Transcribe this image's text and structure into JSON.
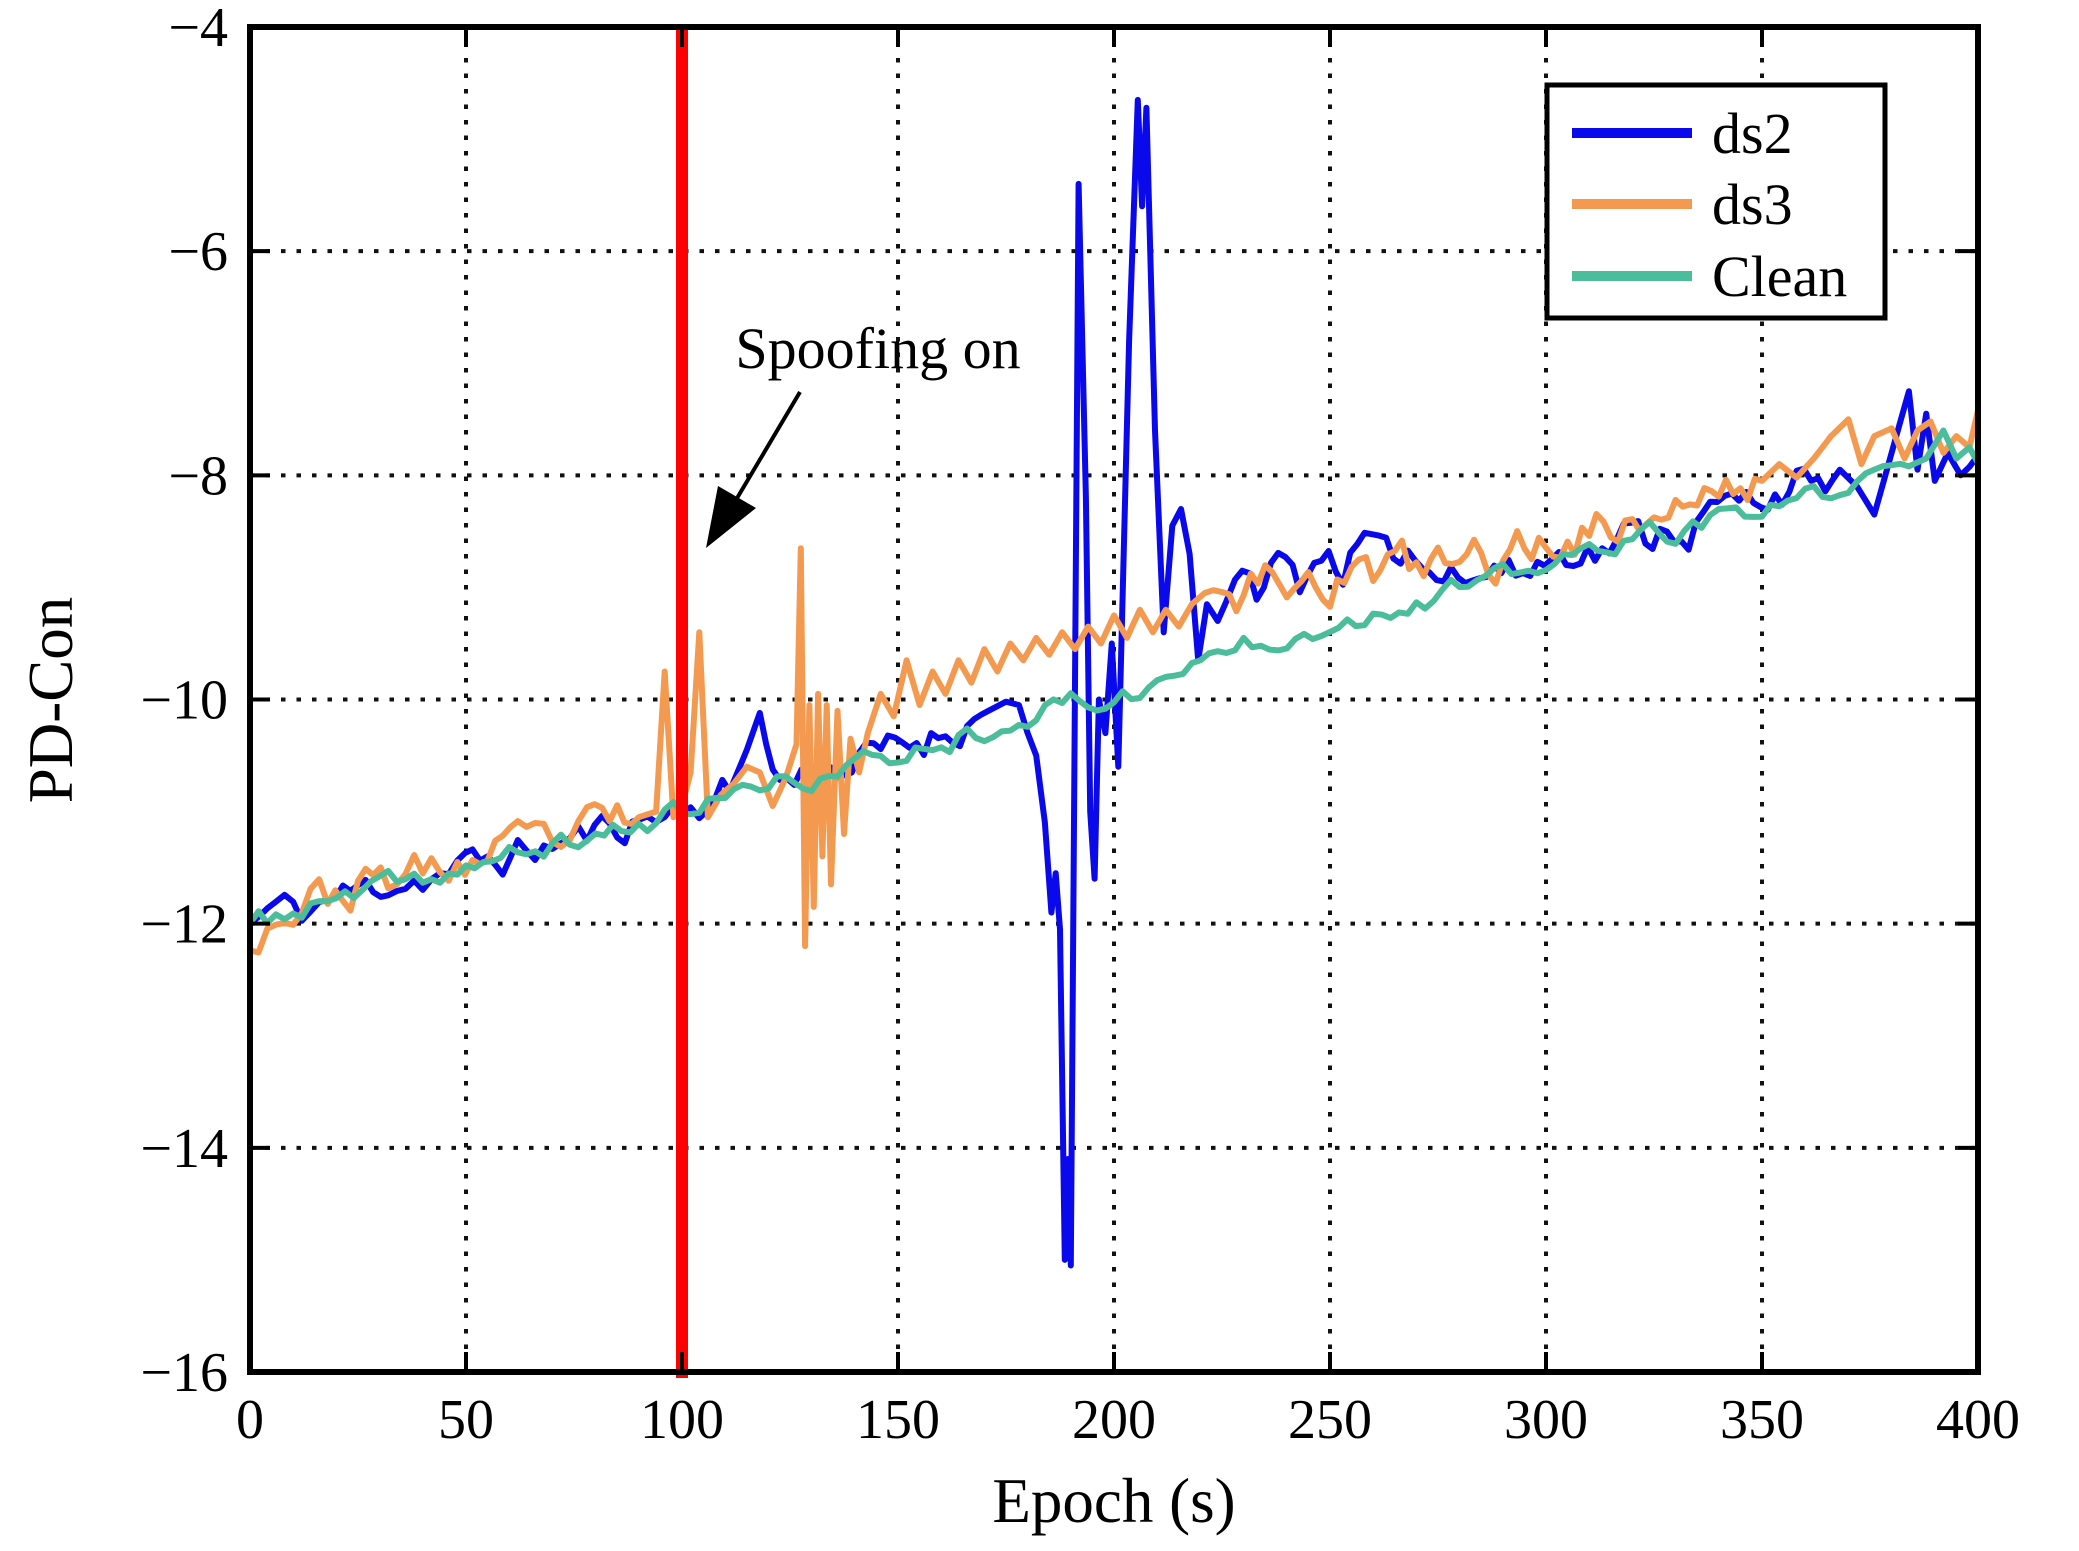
{
  "figure": {
    "title": "",
    "legend": {
      "items": [
        {
          "label": "ds2",
          "color": "#0909EC"
        },
        {
          "label": "ds3",
          "color": "#F49A50"
        },
        {
          "label": "Clean",
          "color": "#4CBD9B"
        }
      ]
    }
  },
  "chart_data": {
    "type": "line",
    "title": "",
    "xlabel": "Epoch (s)",
    "ylabel": "PD-Con",
    "xlim": [
      0,
      400
    ],
    "ylim": [
      -16,
      -4
    ],
    "xticks": [
      0,
      50,
      100,
      150,
      200,
      250,
      300,
      350,
      400
    ],
    "yticks": [
      -16,
      -14,
      -12,
      -10,
      -8,
      -6,
      -4
    ],
    "xtick_labels": [
      "0",
      "50",
      "100",
      "150",
      "200",
      "250",
      "300",
      "350",
      "400"
    ],
    "ytick_labels": [
      "−16",
      "−14",
      "−12",
      "−10",
      "−8",
      "−6",
      "−4"
    ],
    "grid": "dotted",
    "legend_position": "top-right",
    "annotation": {
      "text": "Spoofing on"
    },
    "event_line": {
      "x": 100,
      "color": "#FF0000",
      "label": "Spoofing on"
    },
    "series": [
      {
        "name": "ds2",
        "color": "#0909EC",
        "noise": 0.14,
        "seed": 11,
        "anchors": [
          [
            0,
            -12.0
          ],
          [
            6,
            -11.85
          ],
          [
            12,
            -11.9
          ],
          [
            18,
            -11.78
          ],
          [
            25,
            -11.72
          ],
          [
            32,
            -11.62
          ],
          [
            40,
            -11.58
          ],
          [
            48,
            -11.52
          ],
          [
            55,
            -11.45
          ],
          [
            62,
            -11.38
          ],
          [
            70,
            -11.3
          ],
          [
            78,
            -11.22
          ],
          [
            85,
            -11.12
          ],
          [
            92,
            -11.05
          ],
          [
            100,
            -10.98
          ],
          [
            106,
            -10.9
          ],
          [
            111,
            -10.82
          ],
          [
            115,
            -10.45
          ],
          [
            118,
            -10.12
          ],
          [
            121,
            -10.68
          ],
          [
            126,
            -10.72
          ],
          [
            131,
            -10.65
          ],
          [
            136,
            -10.6
          ],
          [
            141,
            -10.55
          ],
          [
            146,
            -10.48
          ],
          [
            151,
            -10.42
          ],
          [
            156,
            -10.35
          ],
          [
            161,
            -10.28
          ],
          [
            166,
            -10.2
          ],
          [
            171,
            -10.1
          ],
          [
            175,
            -10.02
          ],
          [
            178,
            -10.05
          ],
          [
            180,
            -10.3
          ],
          [
            182,
            -10.5
          ],
          [
            184,
            -11.1
          ],
          [
            185.5,
            -11.9
          ],
          [
            186.5,
            -11.55
          ],
          [
            187.5,
            -12.05
          ],
          [
            188.6,
            -15.0
          ],
          [
            189.3,
            -14.1
          ],
          [
            190,
            -15.05
          ],
          [
            191.8,
            -5.4
          ],
          [
            193.5,
            -8.2
          ],
          [
            194.5,
            -11.0
          ],
          [
            195.5,
            -11.6
          ],
          [
            196.5,
            -10.0
          ],
          [
            198,
            -10.3
          ],
          [
            199.5,
            -9.5
          ],
          [
            201,
            -10.6
          ],
          [
            203.5,
            -6.8
          ],
          [
            205.5,
            -4.65
          ],
          [
            206.5,
            -5.6
          ],
          [
            207.5,
            -4.72
          ],
          [
            209.5,
            -7.6
          ],
          [
            211.5,
            -9.4
          ],
          [
            213.5,
            -8.45
          ],
          [
            215.5,
            -8.3
          ],
          [
            217.5,
            -8.7
          ],
          [
            219.5,
            -9.65
          ],
          [
            221.5,
            -9.15
          ],
          [
            224,
            -9.3
          ],
          [
            228,
            -8.95
          ],
          [
            233,
            -9.05
          ],
          [
            238,
            -8.75
          ],
          [
            243,
            -8.95
          ],
          [
            248,
            -8.65
          ],
          [
            253,
            -8.8
          ],
          [
            258,
            -8.6
          ],
          [
            263,
            -8.8
          ],
          [
            268,
            -8.65
          ],
          [
            273,
            -8.85
          ],
          [
            278,
            -8.7
          ],
          [
            283,
            -8.95
          ],
          [
            288,
            -8.8
          ],
          [
            293,
            -8.9
          ],
          [
            298,
            -8.78
          ],
          [
            303,
            -8.72
          ],
          [
            308,
            -8.6
          ],
          [
            313,
            -8.68
          ],
          [
            318,
            -8.52
          ],
          [
            323,
            -8.58
          ],
          [
            328,
            -8.42
          ],
          [
            333,
            -8.48
          ],
          [
            338,
            -8.32
          ],
          [
            343,
            -8.28
          ],
          [
            348,
            -8.22
          ],
          [
            353,
            -8.12
          ],
          [
            358,
            -8.05
          ],
          [
            363,
            -8.18
          ],
          [
            368,
            -7.95
          ],
          [
            372,
            -8.1
          ],
          [
            376,
            -8.35
          ],
          [
            380,
            -7.8
          ],
          [
            384,
            -7.25
          ],
          [
            386,
            -7.95
          ],
          [
            388,
            -7.45
          ],
          [
            390,
            -8.05
          ],
          [
            393,
            -7.8
          ],
          [
            396,
            -8.0
          ],
          [
            400,
            -7.85
          ]
        ]
      },
      {
        "name": "ds3",
        "color": "#F49A50",
        "noise": 0.17,
        "seed": 23,
        "anchors": [
          [
            0,
            -12.1
          ],
          [
            6,
            -11.9
          ],
          [
            12,
            -11.82
          ],
          [
            18,
            -11.75
          ],
          [
            25,
            -11.68
          ],
          [
            32,
            -11.6
          ],
          [
            40,
            -11.55
          ],
          [
            48,
            -11.48
          ],
          [
            55,
            -11.42
          ],
          [
            62,
            -11.35
          ],
          [
            70,
            -11.28
          ],
          [
            78,
            -11.18
          ],
          [
            85,
            -11.1
          ],
          [
            90,
            -11.05
          ],
          [
            94,
            -11.0
          ],
          [
            96,
            -9.75
          ],
          [
            98,
            -11.05
          ],
          [
            100,
            -10.95
          ],
          [
            102,
            -10.65
          ],
          [
            104,
            -9.4
          ],
          [
            106,
            -11.05
          ],
          [
            109,
            -10.85
          ],
          [
            112,
            -10.75
          ],
          [
            115,
            -10.6
          ],
          [
            118,
            -10.65
          ],
          [
            121,
            -10.95
          ],
          [
            124,
            -10.7
          ],
          [
            126.5,
            -10.4
          ],
          [
            127.5,
            -8.65
          ],
          [
            128.5,
            -12.2
          ],
          [
            129.5,
            -10.05
          ],
          [
            130.5,
            -11.85
          ],
          [
            131.5,
            -9.95
          ],
          [
            132.5,
            -11.4
          ],
          [
            133.5,
            -10.05
          ],
          [
            134.5,
            -11.65
          ],
          [
            136,
            -10.1
          ],
          [
            137.5,
            -11.2
          ],
          [
            139,
            -10.35
          ],
          [
            141,
            -10.65
          ],
          [
            143,
            -10.3
          ],
          [
            146,
            -9.95
          ],
          [
            149,
            -10.15
          ],
          [
            152,
            -9.65
          ],
          [
            155,
            -10.05
          ],
          [
            158,
            -9.75
          ],
          [
            161,
            -9.95
          ],
          [
            164,
            -9.65
          ],
          [
            167,
            -9.85
          ],
          [
            170,
            -9.55
          ],
          [
            173,
            -9.75
          ],
          [
            176,
            -9.5
          ],
          [
            179,
            -9.65
          ],
          [
            182,
            -9.45
          ],
          [
            185,
            -9.6
          ],
          [
            188,
            -9.4
          ],
          [
            191,
            -9.55
          ],
          [
            194,
            -9.35
          ],
          [
            197,
            -9.5
          ],
          [
            200,
            -9.25
          ],
          [
            203,
            -9.45
          ],
          [
            206,
            -9.2
          ],
          [
            209,
            -9.4
          ],
          [
            212,
            -9.2
          ],
          [
            215,
            -9.35
          ],
          [
            218,
            -9.15
          ],
          [
            221,
            -9.05
          ],
          [
            225,
            -9.0
          ],
          [
            230,
            -9.1
          ],
          [
            235,
            -8.9
          ],
          [
            240,
            -9.0
          ],
          [
            245,
            -8.85
          ],
          [
            250,
            -8.95
          ],
          [
            255,
            -8.85
          ],
          [
            260,
            -8.9
          ],
          [
            265,
            -8.8
          ],
          [
            270,
            -8.85
          ],
          [
            275,
            -8.78
          ],
          [
            280,
            -8.82
          ],
          [
            285,
            -8.72
          ],
          [
            290,
            -8.76
          ],
          [
            295,
            -8.65
          ],
          [
            300,
            -8.6
          ],
          [
            305,
            -8.52
          ],
          [
            310,
            -8.48
          ],
          [
            315,
            -8.42
          ],
          [
            320,
            -8.45
          ],
          [
            325,
            -8.32
          ],
          [
            330,
            -8.28
          ],
          [
            335,
            -8.22
          ],
          [
            340,
            -8.15
          ],
          [
            345,
            -8.12
          ],
          [
            350,
            -8.05
          ],
          [
            354,
            -7.9
          ],
          [
            358,
            -8.02
          ],
          [
            362,
            -7.85
          ],
          [
            366,
            -7.65
          ],
          [
            370,
            -7.5
          ],
          [
            373,
            -7.9
          ],
          [
            376,
            -7.65
          ],
          [
            380,
            -7.58
          ],
          [
            383,
            -7.85
          ],
          [
            386,
            -7.6
          ],
          [
            389,
            -7.52
          ],
          [
            392,
            -7.8
          ],
          [
            395,
            -7.65
          ],
          [
            398,
            -7.75
          ],
          [
            400,
            -7.6
          ]
        ]
      },
      {
        "name": "Clean",
        "color": "#4CBD9B",
        "noise": 0.09,
        "seed": 37,
        "anchors": [
          [
            0,
            -12.0
          ],
          [
            8,
            -11.92
          ],
          [
            16,
            -11.85
          ],
          [
            24,
            -11.76
          ],
          [
            32,
            -11.68
          ],
          [
            40,
            -11.6
          ],
          [
            48,
            -11.52
          ],
          [
            56,
            -11.45
          ],
          [
            64,
            -11.37
          ],
          [
            72,
            -11.3
          ],
          [
            80,
            -11.22
          ],
          [
            88,
            -11.12
          ],
          [
            96,
            -11.05
          ],
          [
            104,
            -10.95
          ],
          [
            112,
            -10.85
          ],
          [
            120,
            -10.78
          ],
          [
            128,
            -10.72
          ],
          [
            136,
            -10.65
          ],
          [
            144,
            -10.55
          ],
          [
            152,
            -10.48
          ],
          [
            160,
            -10.38
          ],
          [
            168,
            -10.28
          ],
          [
            176,
            -10.18
          ],
          [
            184,
            -10.1
          ],
          [
            192,
            -10.02
          ],
          [
            200,
            -9.98
          ],
          [
            208,
            -9.9
          ],
          [
            216,
            -9.75
          ],
          [
            222,
            -9.62
          ],
          [
            228,
            -9.5
          ],
          [
            234,
            -9.45
          ],
          [
            240,
            -9.42
          ],
          [
            246,
            -9.35
          ],
          [
            252,
            -9.28
          ],
          [
            258,
            -9.25
          ],
          [
            264,
            -9.18
          ],
          [
            270,
            -9.12
          ],
          [
            276,
            -9.05
          ],
          [
            282,
            -9.0
          ],
          [
            288,
            -8.94
          ],
          [
            294,
            -8.88
          ],
          [
            300,
            -8.84
          ],
          [
            306,
            -8.72
          ],
          [
            312,
            -8.66
          ],
          [
            318,
            -8.6
          ],
          [
            324,
            -8.55
          ],
          [
            330,
            -8.5
          ],
          [
            336,
            -8.45
          ],
          [
            342,
            -8.4
          ],
          [
            348,
            -8.35
          ],
          [
            354,
            -8.28
          ],
          [
            360,
            -8.22
          ],
          [
            366,
            -8.15
          ],
          [
            372,
            -8.08
          ],
          [
            378,
            -8.0
          ],
          [
            384,
            -7.92
          ],
          [
            388,
            -7.85
          ],
          [
            392,
            -7.6
          ],
          [
            395,
            -7.85
          ],
          [
            398,
            -7.75
          ],
          [
            400,
            -7.9
          ]
        ]
      }
    ]
  }
}
